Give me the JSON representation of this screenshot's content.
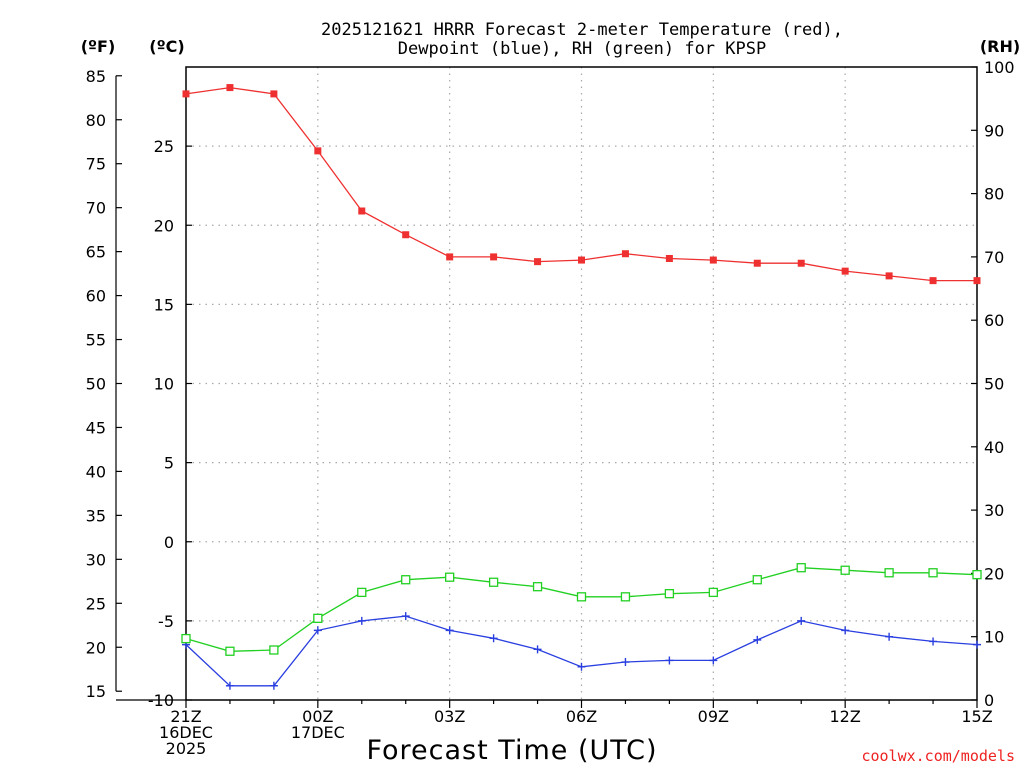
{
  "colors": {
    "temperature": "#ef3030",
    "dewpoint": "#2a3fe0",
    "rh": "#22d022",
    "credit": "#ee2222",
    "grid": "#a8a8a8"
  },
  "credit": "coolwx.com/models",
  "chart_data": {
    "type": "line",
    "title_line1": "2025121621 HRRR Forecast 2-meter Temperature (red),",
    "title_line2": "Dewpoint (blue), RH (green) for KPSP",
    "xlabel": "Forecast Time (UTC)",
    "unit_f": "(ºF)",
    "unit_c": "(ºC)",
    "unit_rh": "(RH)",
    "x_hours": [
      0,
      1,
      2,
      3,
      4,
      5,
      6,
      7,
      8,
      9,
      10,
      11,
      12,
      13,
      14,
      15,
      16,
      17,
      18
    ],
    "x_ticks": [
      {
        "hour": 0,
        "lines": [
          "21Z",
          "16DEC",
          "2025"
        ]
      },
      {
        "hour": 3,
        "lines": [
          "00Z",
          "17DEC"
        ]
      },
      {
        "hour": 6,
        "lines": [
          "03Z"
        ]
      },
      {
        "hour": 9,
        "lines": [
          "06Z"
        ]
      },
      {
        "hour": 12,
        "lines": [
          "09Z"
        ]
      },
      {
        "hour": 15,
        "lines": [
          "12Z"
        ]
      },
      {
        "hour": 18,
        "lines": [
          "15Z"
        ]
      }
    ],
    "y_celsius": {
      "range": [
        -10,
        30
      ],
      "ticks": [
        -10,
        -5,
        0,
        5,
        10,
        15,
        20,
        25
      ]
    },
    "y_fahrenheit": {
      "ticks": [
        15,
        20,
        25,
        30,
        35,
        40,
        45,
        50,
        55,
        60,
        65,
        70,
        75,
        80,
        85
      ]
    },
    "y_rh": {
      "range": [
        0,
        100
      ],
      "ticks": [
        0,
        10,
        20,
        30,
        40,
        50,
        60,
        70,
        80,
        90,
        100
      ]
    },
    "series": [
      {
        "name": "Temperature",
        "unit": "C",
        "marker": "filled-square",
        "color_key": "temperature",
        "values": [
          28.3,
          28.7,
          28.3,
          24.7,
          20.9,
          19.4,
          18.0,
          18.0,
          17.7,
          17.8,
          18.2,
          17.9,
          17.8,
          17.6,
          17.6,
          17.1,
          16.8,
          16.5,
          16.5
        ]
      },
      {
        "name": "Dewpoint",
        "unit": "C",
        "marker": "plus",
        "color_key": "dewpoint",
        "values": [
          -6.5,
          -9.1,
          -9.1,
          -5.6,
          -5.0,
          -4.7,
          -5.6,
          -6.1,
          -6.8,
          -7.9,
          -7.6,
          -7.5,
          -7.5,
          -6.2,
          -5.0,
          -5.6,
          -6.0,
          -6.3,
          -6.5
        ]
      },
      {
        "name": "RH",
        "unit": "%",
        "marker": "open-square",
        "color_key": "rh",
        "values": [
          9.7,
          7.7,
          7.9,
          12.9,
          17.0,
          19.0,
          19.4,
          18.6,
          17.9,
          16.3,
          16.3,
          16.8,
          17.0,
          19.0,
          20.9,
          20.5,
          20.1,
          20.1,
          19.8
        ]
      }
    ]
  }
}
